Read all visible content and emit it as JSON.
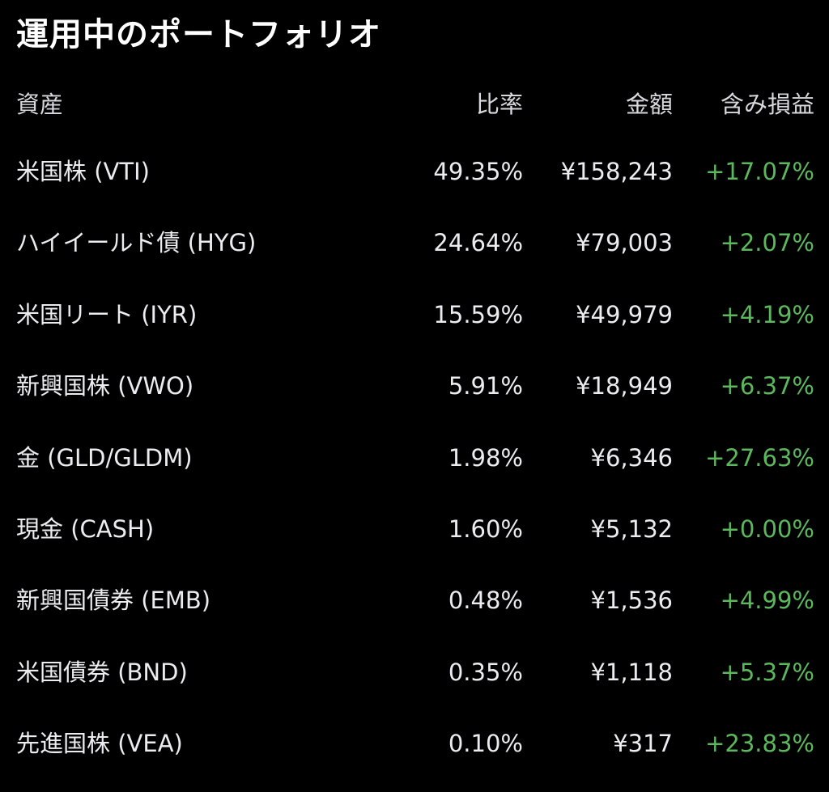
{
  "title": "運用中のポートフォリオ",
  "columns": {
    "asset": "資産",
    "ratio": "比率",
    "amount": "金額",
    "pl": "含み損益"
  },
  "colors": {
    "background": "#000000",
    "gain": "#5cb85c"
  },
  "rows": [
    {
      "asset": "米国株 (VTI)",
      "ratio": "49.35%",
      "amount": "¥158,243",
      "pl": "+17.07%"
    },
    {
      "asset": "ハイイールド債 (HYG)",
      "ratio": "24.64%",
      "amount": "¥79,003",
      "pl": "+2.07%"
    },
    {
      "asset": "米国リート (IYR)",
      "ratio": "15.59%",
      "amount": "¥49,979",
      "pl": "+4.19%"
    },
    {
      "asset": "新興国株 (VWO)",
      "ratio": "5.91%",
      "amount": "¥18,949",
      "pl": "+6.37%"
    },
    {
      "asset": "金 (GLD/GLDM)",
      "ratio": "1.98%",
      "amount": "¥6,346",
      "pl": "+27.63%"
    },
    {
      "asset": "現金 (CASH)",
      "ratio": "1.60%",
      "amount": "¥5,132",
      "pl": "+0.00%"
    },
    {
      "asset": "新興国債券 (EMB)",
      "ratio": "0.48%",
      "amount": "¥1,536",
      "pl": "+4.99%"
    },
    {
      "asset": "米国債券 (BND)",
      "ratio": "0.35%",
      "amount": "¥1,118",
      "pl": "+5.37%"
    },
    {
      "asset": "先進国株 (VEA)",
      "ratio": "0.10%",
      "amount": "¥317",
      "pl": "+23.83%"
    }
  ]
}
